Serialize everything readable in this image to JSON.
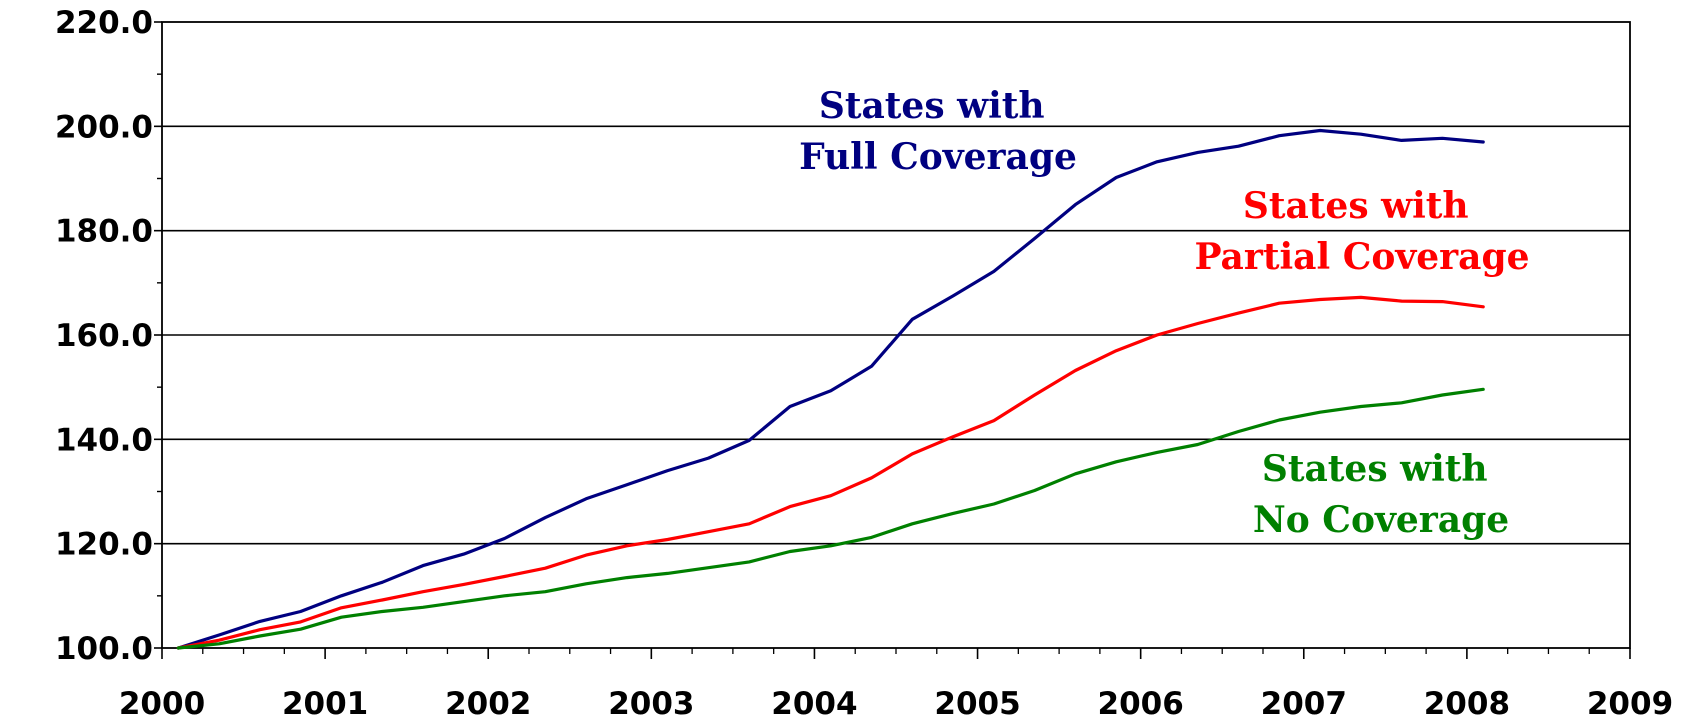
{
  "chart_data": {
    "type": "line",
    "title": "",
    "xlabel": "",
    "ylabel": "",
    "xlim": [
      2000,
      2009
    ],
    "ylim": [
      100,
      220
    ],
    "grid": true,
    "yticks": [
      "100.0",
      "120.0",
      "140.0",
      "160.0",
      "180.0",
      "200.0",
      "220.0"
    ],
    "xticks": [
      "2000",
      "2001",
      "2002",
      "2003",
      "2004",
      "2005",
      "2006",
      "2007",
      "2008",
      "2009"
    ],
    "series": [
      {
        "name": "States with Full Coverage",
        "label_lines": [
          "States with",
          "Full Coverage"
        ],
        "color": "#000080",
        "points": [
          [
            2000.1,
            100.0
          ],
          [
            2000.35,
            102.5
          ],
          [
            2000.6,
            105.1
          ],
          [
            2000.85,
            107.0
          ],
          [
            2001.1,
            110.0
          ],
          [
            2001.35,
            112.6
          ],
          [
            2001.6,
            115.8
          ],
          [
            2001.85,
            118.0
          ],
          [
            2002.1,
            121.0
          ],
          [
            2002.35,
            125.0
          ],
          [
            2002.6,
            128.6
          ],
          [
            2002.85,
            131.3
          ],
          [
            2003.1,
            134.0
          ],
          [
            2003.35,
            136.4
          ],
          [
            2003.6,
            139.8
          ],
          [
            2003.85,
            146.3
          ],
          [
            2004.1,
            149.3
          ],
          [
            2004.35,
            154.0
          ],
          [
            2004.6,
            163.0
          ],
          [
            2004.85,
            167.5
          ],
          [
            2005.1,
            172.2
          ],
          [
            2005.35,
            178.5
          ],
          [
            2005.6,
            185.0
          ],
          [
            2005.85,
            190.2
          ],
          [
            2006.1,
            193.2
          ],
          [
            2006.35,
            195.0
          ],
          [
            2006.6,
            196.2
          ],
          [
            2006.85,
            198.2
          ],
          [
            2007.1,
            199.2
          ],
          [
            2007.35,
            198.5
          ],
          [
            2007.6,
            197.3
          ],
          [
            2007.85,
            197.7
          ],
          [
            2008.1,
            197.0
          ]
        ]
      },
      {
        "name": "States with Partial Coverage",
        "label_lines": [
          "States with",
          "Partial Coverage"
        ],
        "color": "#ff0000",
        "points": [
          [
            2000.1,
            100.0
          ],
          [
            2000.35,
            101.5
          ],
          [
            2000.6,
            103.5
          ],
          [
            2000.85,
            105.0
          ],
          [
            2001.1,
            107.7
          ],
          [
            2001.35,
            109.2
          ],
          [
            2001.6,
            110.8
          ],
          [
            2001.85,
            112.2
          ],
          [
            2002.1,
            113.7
          ],
          [
            2002.35,
            115.3
          ],
          [
            2002.6,
            117.8
          ],
          [
            2002.85,
            119.6
          ],
          [
            2003.1,
            120.8
          ],
          [
            2003.35,
            122.3
          ],
          [
            2003.6,
            123.8
          ],
          [
            2003.85,
            127.1
          ],
          [
            2004.1,
            129.2
          ],
          [
            2004.35,
            132.6
          ],
          [
            2004.6,
            137.2
          ],
          [
            2004.85,
            140.5
          ],
          [
            2005.1,
            143.6
          ],
          [
            2005.35,
            148.5
          ],
          [
            2005.6,
            153.2
          ],
          [
            2005.85,
            157.0
          ],
          [
            2006.1,
            160.0
          ],
          [
            2006.35,
            162.2
          ],
          [
            2006.6,
            164.2
          ],
          [
            2006.85,
            166.1
          ],
          [
            2007.1,
            166.8
          ],
          [
            2007.35,
            167.2
          ],
          [
            2007.6,
            166.5
          ],
          [
            2007.85,
            166.4
          ],
          [
            2008.1,
            165.4
          ]
        ]
      },
      {
        "name": "States with No Coverage",
        "label_lines": [
          "States with",
          "No Coverage"
        ],
        "color": "#008000",
        "points": [
          [
            2000.1,
            100.0
          ],
          [
            2000.35,
            100.8
          ],
          [
            2000.6,
            102.3
          ],
          [
            2000.85,
            103.6
          ],
          [
            2001.1,
            105.9
          ],
          [
            2001.35,
            107.0
          ],
          [
            2001.6,
            107.8
          ],
          [
            2001.85,
            108.9
          ],
          [
            2002.1,
            110.0
          ],
          [
            2002.35,
            110.8
          ],
          [
            2002.6,
            112.3
          ],
          [
            2002.85,
            113.5
          ],
          [
            2003.1,
            114.3
          ],
          [
            2003.35,
            115.4
          ],
          [
            2003.6,
            116.5
          ],
          [
            2003.85,
            118.5
          ],
          [
            2004.1,
            119.6
          ],
          [
            2004.35,
            121.2
          ],
          [
            2004.6,
            123.8
          ],
          [
            2004.85,
            125.8
          ],
          [
            2005.1,
            127.6
          ],
          [
            2005.35,
            130.2
          ],
          [
            2005.6,
            133.4
          ],
          [
            2005.85,
            135.7
          ],
          [
            2006.1,
            137.5
          ],
          [
            2006.35,
            139.0
          ],
          [
            2006.6,
            141.5
          ],
          [
            2006.85,
            143.7
          ],
          [
            2007.1,
            145.2
          ],
          [
            2007.35,
            146.3
          ],
          [
            2007.6,
            147.0
          ],
          [
            2007.85,
            148.5
          ],
          [
            2008.1,
            149.6
          ]
        ]
      }
    ]
  }
}
